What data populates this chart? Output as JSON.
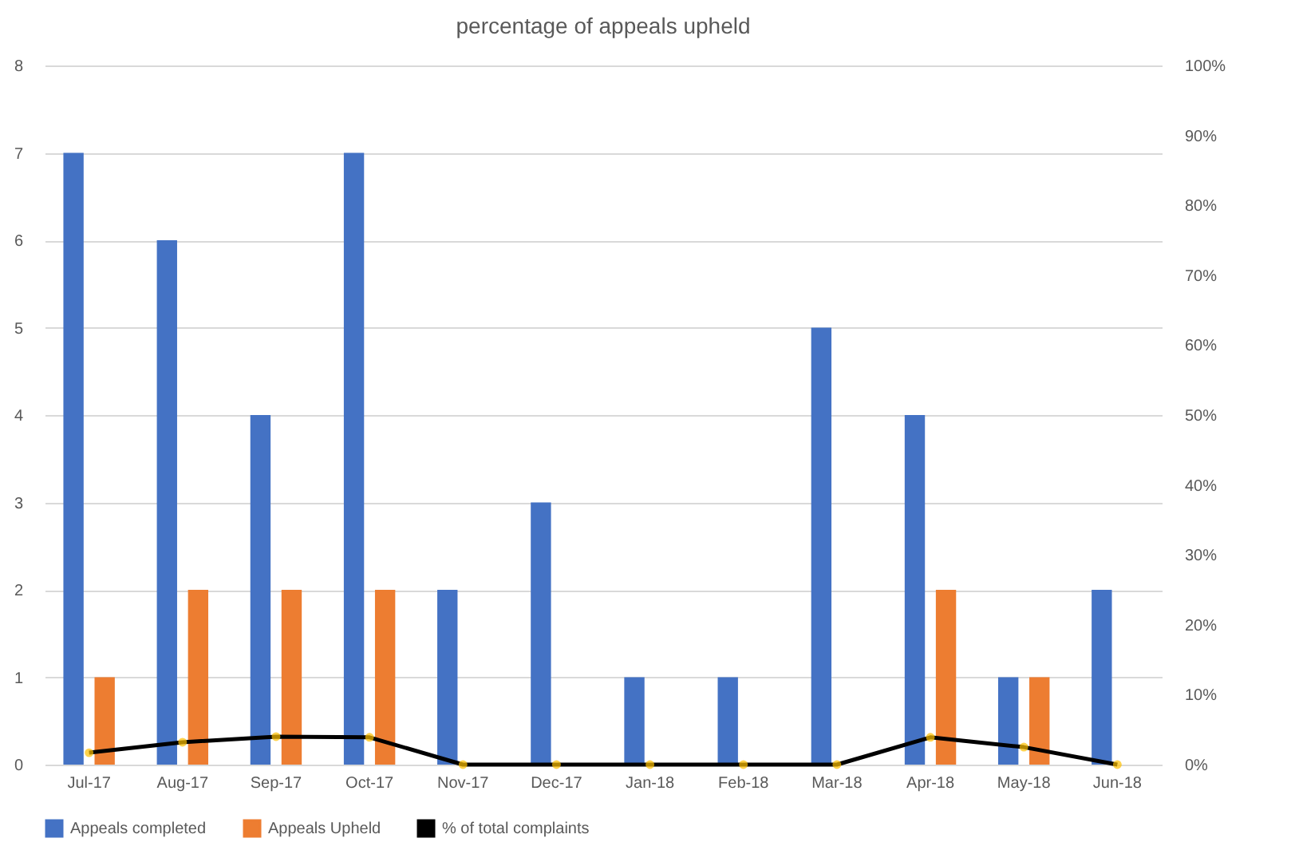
{
  "chart_data": {
    "type": "bar",
    "title": "percentage of appeals upheld",
    "categories": [
      "Jul-17",
      "Aug-17",
      "Sep-17",
      "Oct-17",
      "Nov-17",
      "Dec-17",
      "Jan-18",
      "Feb-18",
      "Mar-18",
      "Apr-18",
      "May-18",
      "Jun-18"
    ],
    "series": [
      {
        "name": "Appeals completed",
        "color": "#4472c4",
        "values": [
          7,
          6,
          4,
          7,
          2,
          3,
          1,
          1,
          5,
          4,
          1,
          2
        ]
      },
      {
        "name": "Appeals Upheld",
        "color": "#ed7d31",
        "values": [
          1,
          2,
          2,
          2,
          0,
          0,
          0,
          0,
          0,
          2,
          1,
          0
        ]
      },
      {
        "name": "% of total complaints",
        "type": "line",
        "axis": "y2",
        "color": "#000000",
        "marker": "circle",
        "colors": [
          "#ffc000",
          "#ffc000",
          "#ffc000",
          "#ffc000",
          "#ffc000",
          "#ffc000",
          "#ffc000",
          "#ffc000",
          "#ffc000",
          "#ffc000",
          "#ffc000",
          "#ffc000"
        ],
        "values": [
          1.7,
          3.2,
          4.0,
          3.9,
          0,
          0,
          0,
          0,
          0,
          3.9,
          2.5,
          0
        ]
      }
    ],
    "ylim": [
      0,
      8
    ],
    "yticks": [
      0,
      1,
      2,
      3,
      4,
      5,
      6,
      7,
      8
    ],
    "y2lim": [
      0,
      100
    ],
    "y2ticks": [
      {
        "value": 0,
        "label": "0%"
      },
      {
        "value": 10,
        "label": "10%"
      },
      {
        "value": 20,
        "label": "20%"
      },
      {
        "value": 30,
        "label": "30%"
      },
      {
        "value": 40,
        "label": "40%"
      },
      {
        "value": 50,
        "label": "50%"
      },
      {
        "value": 60,
        "label": "60%"
      },
      {
        "value": 70,
        "label": "70%"
      },
      {
        "value": 80,
        "label": "80%"
      },
      {
        "value": 90,
        "label": "90%"
      },
      {
        "value": 100,
        "label": "100%"
      }
    ],
    "grid": "y",
    "legend": "bottom"
  }
}
